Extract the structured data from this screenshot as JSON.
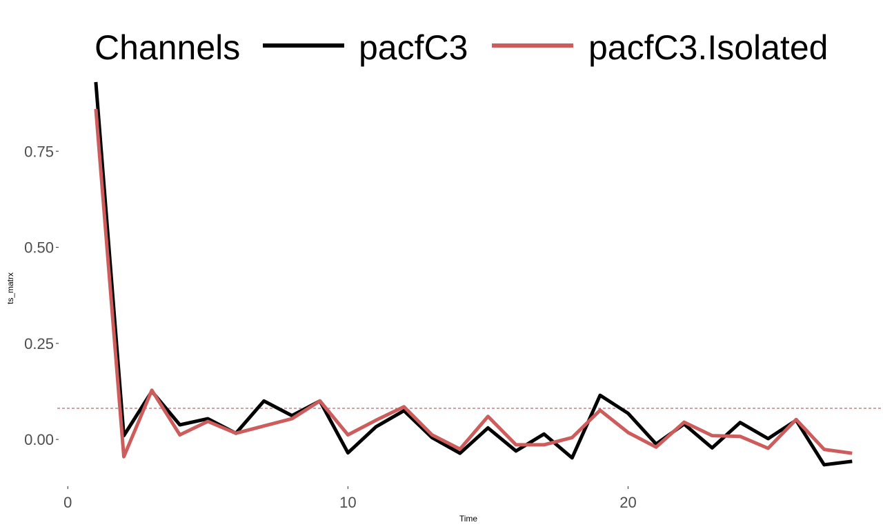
{
  "chart_data": {
    "type": "line",
    "xlabel": "Time",
    "ylabel": "ts_matrx",
    "xlim": [
      -0.5,
      29.1
    ],
    "ylim": [
      -0.12,
      0.93
    ],
    "x_ticks": [
      0,
      10,
      20
    ],
    "y_ticks": [
      0.0,
      0.25,
      0.5,
      0.75
    ],
    "x_tick_labels": [
      "0",
      "10",
      "20"
    ],
    "y_tick_labels": [
      "0.00",
      "0.25",
      "0.50",
      "0.75"
    ],
    "grid": false,
    "legend": {
      "title": "Channels",
      "position": "top",
      "entries": [
        "pacfC3",
        "pacfC3.Isolated"
      ]
    },
    "threshold_line": {
      "y": 0.081,
      "style": "dashed",
      "color": "#a3474d"
    },
    "x": [
      1,
      2,
      3,
      4,
      5,
      6,
      7,
      8,
      9,
      10,
      11,
      12,
      13,
      14,
      15,
      16,
      17,
      18,
      19,
      20,
      21,
      22,
      23,
      24,
      25,
      26,
      27,
      28
    ],
    "series": [
      {
        "name": "pacfC3",
        "color": "#000000",
        "values": [
          0.93,
          0.01,
          0.125,
          0.038,
          0.054,
          0.016,
          0.1,
          0.062,
          0.1,
          -0.035,
          0.033,
          0.075,
          0.005,
          -0.036,
          0.03,
          -0.03,
          0.014,
          -0.048,
          0.115,
          0.068,
          -0.012,
          0.04,
          -0.022,
          0.044,
          0.002,
          0.05,
          -0.066,
          -0.057
        ]
      },
      {
        "name": "pacfC3.Isolated",
        "color": "#cd5c5c",
        "values": [
          0.86,
          -0.045,
          0.128,
          0.012,
          0.047,
          0.016,
          0.035,
          0.054,
          0.1,
          0.012,
          0.05,
          0.085,
          0.012,
          -0.025,
          0.06,
          -0.014,
          -0.014,
          0.005,
          0.076,
          0.018,
          -0.02,
          0.045,
          0.01,
          0.008,
          -0.023,
          0.052,
          -0.026,
          -0.036
        ]
      }
    ]
  }
}
